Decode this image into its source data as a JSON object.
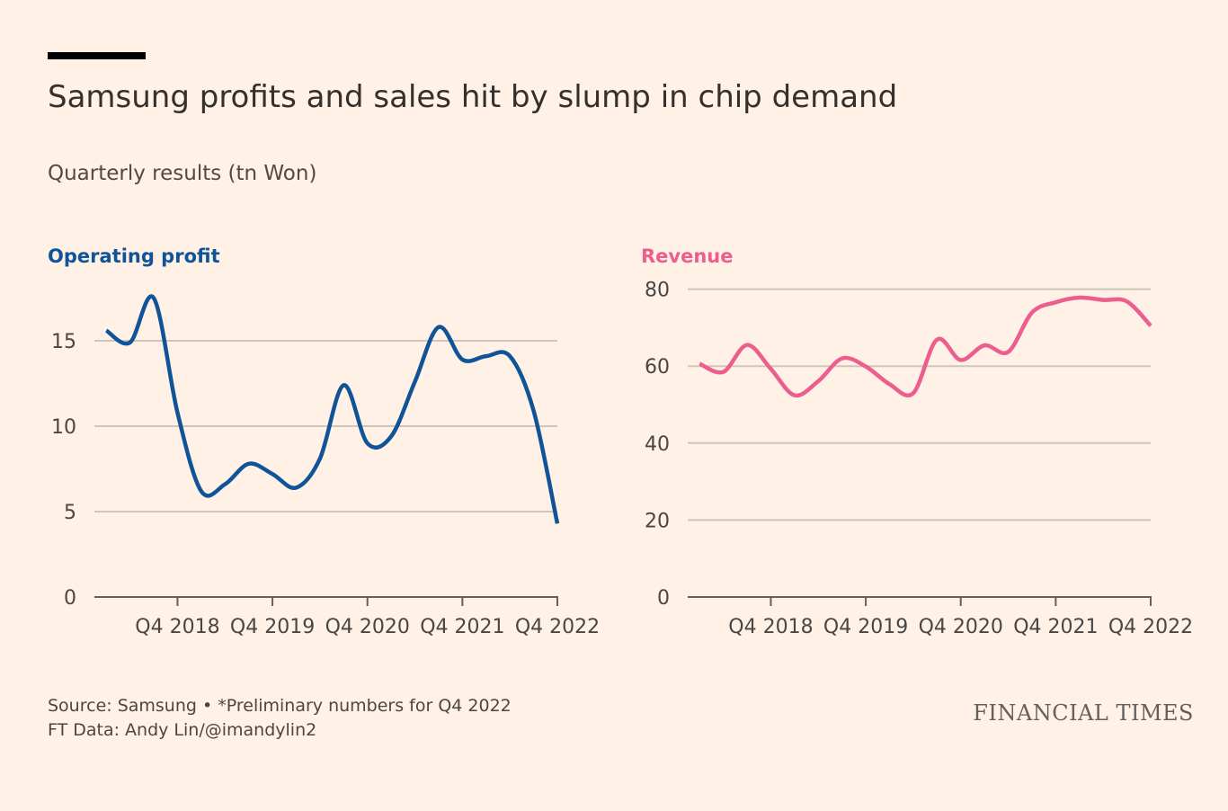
{
  "title": "Samsung profits and sales hit by slump in chip demand",
  "subtitle": "Quarterly results (tn Won)",
  "source_line": "Source: Samsung • *Preliminary numbers for Q4 2022",
  "credit_line": "FT Data: Andy Lin/@imandylin2",
  "logo_text": "FINANCIAL TIMES",
  "colors": {
    "background": "#fff1e5",
    "profit_line": "#0f5499",
    "revenue_line": "#eb5e8d",
    "grid": "#cec6b9",
    "axis": "#66605c"
  },
  "chart_data": [
    {
      "type": "line",
      "title": "Operating profit",
      "x": [
        "Q1 2018",
        "Q2 2018",
        "Q3 2018",
        "Q4 2018",
        "Q1 2019",
        "Q2 2019",
        "Q3 2019",
        "Q4 2019",
        "Q1 2020",
        "Q2 2020",
        "Q3 2020",
        "Q4 2020",
        "Q1 2021",
        "Q2 2021",
        "Q3 2021",
        "Q4 2021",
        "Q1 2022",
        "Q2 2022",
        "Q3 2022",
        "Q4 2022"
      ],
      "series": [
        {
          "values": [
            15.6,
            14.9,
            17.5,
            10.8,
            6.2,
            6.6,
            7.8,
            7.2,
            6.4,
            8.1,
            12.4,
            9.0,
            9.4,
            12.6,
            15.8,
            13.9,
            14.1,
            14.1,
            10.9,
            4.3
          ]
        }
      ],
      "x_tick_labels": [
        "Q4 2018",
        "Q4 2019",
        "Q4 2020",
        "Q4 2021",
        "Q4 2022"
      ],
      "y_ticks": [
        0,
        5,
        10,
        15
      ],
      "ylim": [
        0,
        18
      ],
      "grid": true
    },
    {
      "type": "line",
      "title": "Revenue",
      "x": [
        "Q1 2018",
        "Q2 2018",
        "Q3 2018",
        "Q4 2018",
        "Q1 2019",
        "Q2 2019",
        "Q3 2019",
        "Q4 2019",
        "Q1 2020",
        "Q2 2020",
        "Q3 2020",
        "Q4 2020",
        "Q1 2021",
        "Q2 2021",
        "Q3 2021",
        "Q4 2021",
        "Q1 2022",
        "Q2 2022",
        "Q3 2022",
        "Q4 2022"
      ],
      "series": [
        {
          "values": [
            60.6,
            58.5,
            65.5,
            59.3,
            52.4,
            56.1,
            62.0,
            59.9,
            55.3,
            53.0,
            66.9,
            61.6,
            65.4,
            63.7,
            73.9,
            76.6,
            77.8,
            77.2,
            76.8,
            70.5
          ]
        }
      ],
      "x_tick_labels": [
        "Q4 2018",
        "Q4 2019",
        "Q4 2020",
        "Q4 2021",
        "Q4 2022"
      ],
      "y_ticks": [
        0,
        20,
        40,
        60,
        80
      ],
      "ylim": [
        0,
        80
      ],
      "grid": true
    }
  ]
}
